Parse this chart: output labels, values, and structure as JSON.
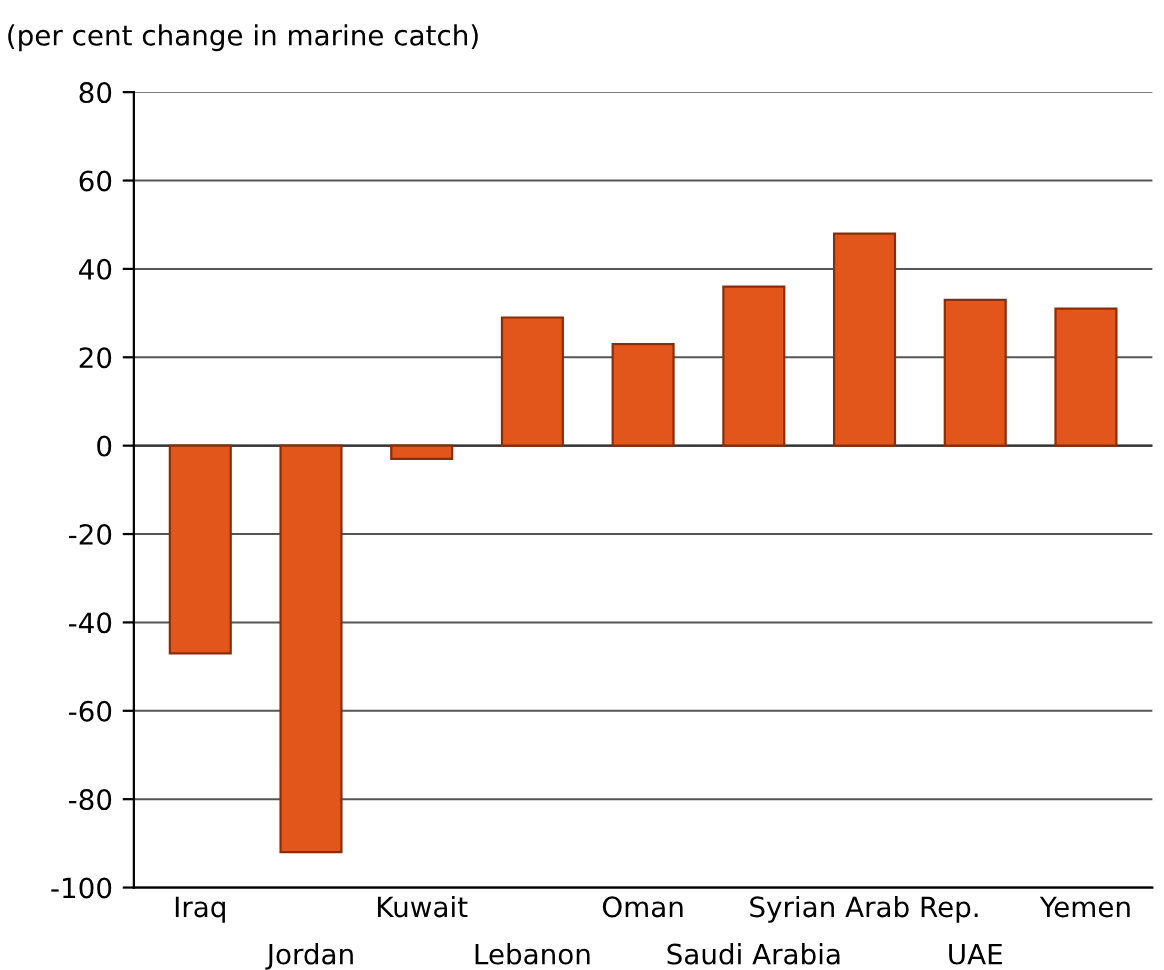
{
  "chart_data": {
    "type": "bar",
    "ylabel": "(per cent change in marine catch)",
    "categories": [
      "Iraq",
      "Jordan",
      "Kuwait",
      "Lebanon",
      "Oman",
      "Saudi Arabia",
      "Syrian Arab Rep.",
      "UAE",
      "Yemen"
    ],
    "values": [
      -47,
      -92,
      -3,
      29,
      23,
      36,
      48,
      33,
      31
    ],
    "color": "#e2561c",
    "ylim": [
      -100,
      80
    ],
    "yticks": [
      -100,
      -80,
      -60,
      -40,
      -20,
      0,
      20,
      40,
      60,
      80
    ],
    "grid": "y"
  }
}
